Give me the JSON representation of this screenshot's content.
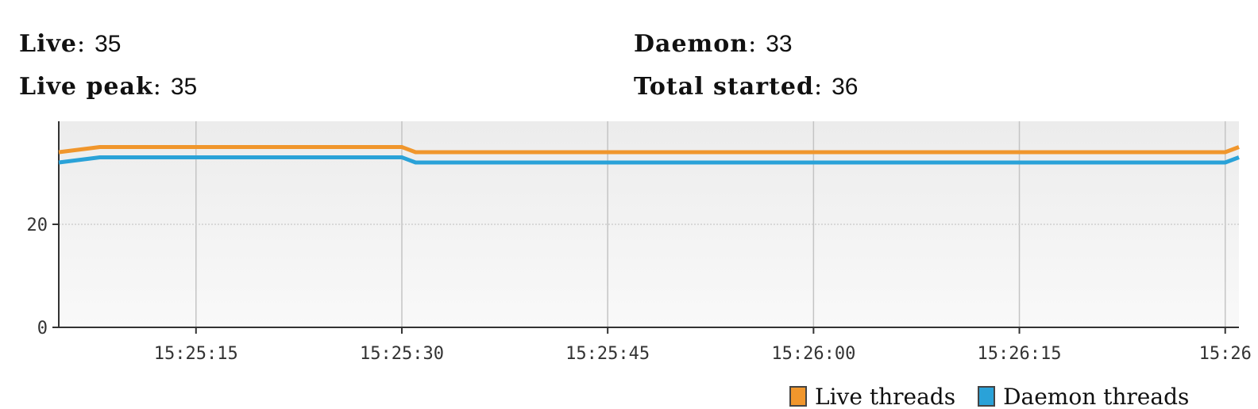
{
  "stats": {
    "live": {
      "label": "Live",
      "value": "35"
    },
    "live_peak": {
      "label": "Live peak",
      "value": "35"
    },
    "daemon": {
      "label": "Daemon",
      "value": "33"
    },
    "total_started": {
      "label": "Total started",
      "value": "36"
    }
  },
  "chart_data": {
    "type": "line",
    "title": "",
    "xlabel": "",
    "ylabel": "",
    "x_ticks": [
      "15:25:15",
      "15:25:30",
      "15:25:45",
      "15:26:00",
      "15:26:15",
      "15:26"
    ],
    "y_ticks": [
      "0",
      "20"
    ],
    "xlim": [
      "15:25:05",
      "15:26:31"
    ],
    "ylim": [
      0,
      40
    ],
    "grid": true,
    "legend_position": "bottom-right",
    "series": [
      {
        "name": "Live threads",
        "color": "#f0962c",
        "points": [
          [
            "15:25:05",
            34
          ],
          [
            "15:25:08",
            35
          ],
          [
            "15:25:30",
            35
          ],
          [
            "15:25:31",
            34
          ],
          [
            "15:26:30",
            34
          ],
          [
            "15:26:31",
            35
          ]
        ]
      },
      {
        "name": "Daemon threads",
        "color": "#2aa2d8",
        "points": [
          [
            "15:25:05",
            32
          ],
          [
            "15:25:08",
            33
          ],
          [
            "15:25:30",
            33
          ],
          [
            "15:25:31",
            32
          ],
          [
            "15:26:30",
            32
          ],
          [
            "15:26:31",
            33
          ]
        ]
      }
    ]
  }
}
